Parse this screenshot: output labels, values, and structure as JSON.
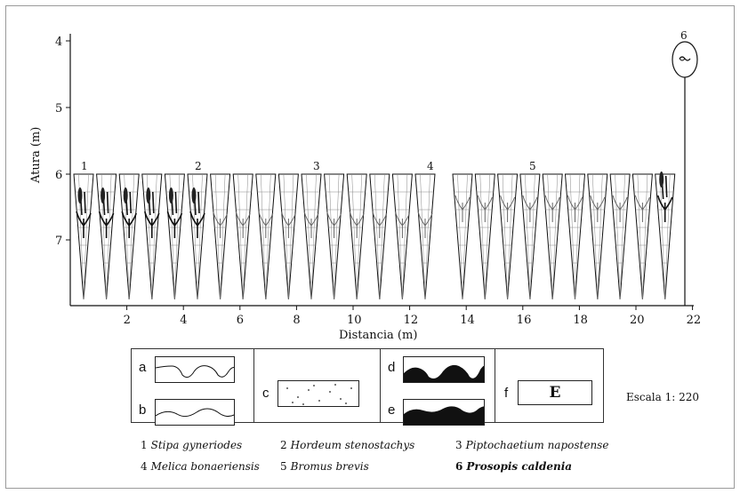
{
  "chart": {
    "ylabel": "Atura (m)",
    "xlabel": "Distancia (m)",
    "y_ticks": [
      "4",
      "5",
      "6",
      "7"
    ],
    "x_ticks": [
      "2",
      "4",
      "6",
      "8",
      "10",
      "12",
      "14",
      "16",
      "18",
      "20",
      "22"
    ],
    "species_markers": [
      "1",
      "2",
      "3",
      "4",
      "5"
    ],
    "tree_marker": "6"
  },
  "legend": {
    "patterns": [
      {
        "letter": "a"
      },
      {
        "letter": "b"
      },
      {
        "letter": "c"
      },
      {
        "letter": "d"
      },
      {
        "letter": "e"
      },
      {
        "letter": "f",
        "box_text": "E"
      }
    ],
    "scale": "Escala 1: 220"
  },
  "species": [
    {
      "num": "1",
      "name": "Stipa gyneriodes"
    },
    {
      "num": "2",
      "name": "Hordeum stenostachys"
    },
    {
      "num": "3",
      "name": "Piptochaetium napostense"
    },
    {
      "num": "4",
      "name": "Melica bonaeriensis"
    },
    {
      "num": "5",
      "name": "Bromus brevis"
    },
    {
      "num": "6",
      "name": "Prosopis caldenia"
    }
  ],
  "colors": {
    "ink": "#111111",
    "grid": "#888888",
    "fill_dark": "#111111"
  }
}
